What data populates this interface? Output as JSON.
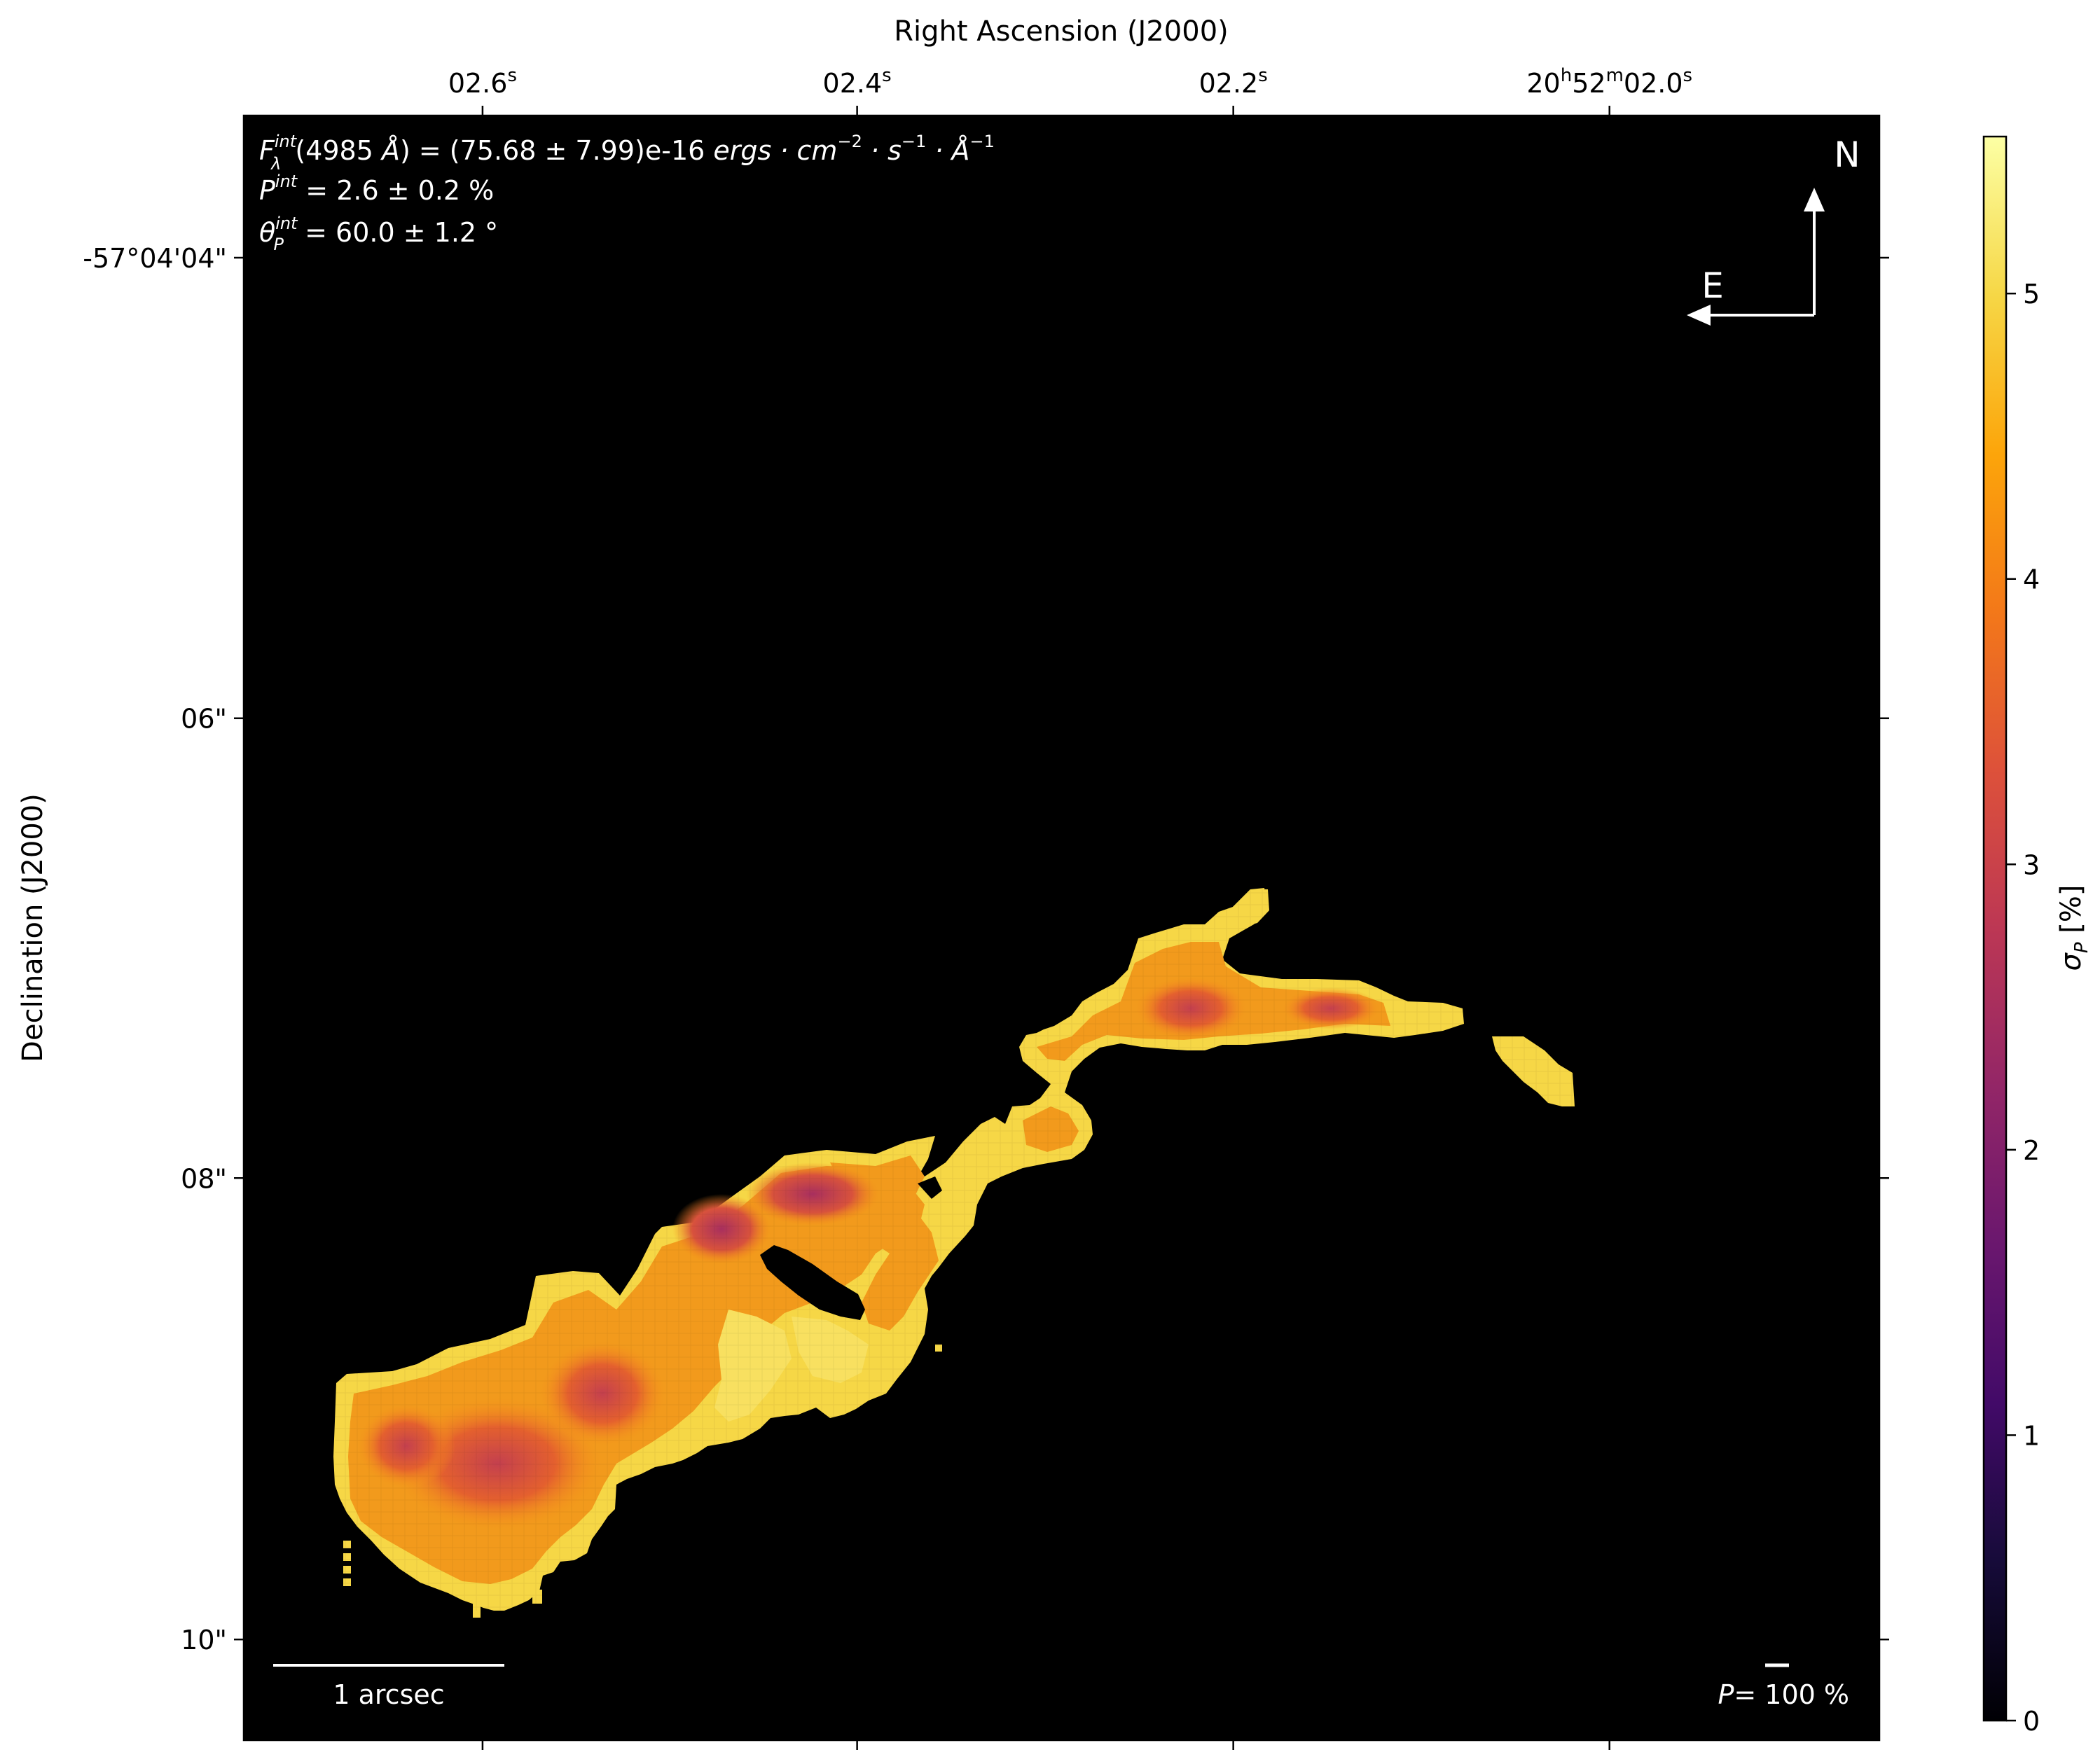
{
  "chart_data": {
    "type": "heatmap",
    "xlabel": "Right Ascension (J2000)",
    "ylabel": "Declination (J2000)",
    "x_ticks": [
      {
        "main": "02.6",
        "sup": "s",
        "pos": 0.146
      },
      {
        "main": "02.4",
        "sup": "s",
        "pos": 0.375
      },
      {
        "main": "02.2",
        "sup": "s",
        "pos": 0.605
      },
      {
        "main": "20",
        "sup": "h",
        "main2": "52",
        "sup2": "m",
        "main3": "02.0",
        "sup3": "s",
        "pos": 0.835
      }
    ],
    "y_ticks": [
      {
        "label": "-57°04'04\"",
        "pos": 0.0875
      },
      {
        "label": "06\"",
        "pos": 0.371
      },
      {
        "label": "08\"",
        "pos": 0.654
      },
      {
        "label": "10\"",
        "pos": 0.938
      }
    ],
    "colorbar": {
      "label": "σ_P [%]",
      "label_main": "σ",
      "label_sub": "P",
      "label_tail": " [%]",
      "min": 0,
      "max": 5.55,
      "ticks": [
        0,
        1,
        2,
        3,
        4,
        5
      ],
      "colormap": "inferno"
    },
    "annotations": {
      "line1_a": "F",
      "line1_sup": "int",
      "line1_sub": "λ",
      "line1_b": "(4985 ",
      "line1_italic_A": "Å",
      "line1_c": ") = (75.68 ± 7.99)e-16 ",
      "line1_units": "ergs · cm",
      "line1_u_sup1": "−2",
      "line1_units2": " · s",
      "line1_u_sup2": "−1",
      "line1_units3": " · Å",
      "line1_u_sup3": "−1",
      "line2_a": "P",
      "line2_sup": "int",
      "line2_b": " = 2.6 ± 0.2 %",
      "line3_a": "θ",
      "line3_sup": "int",
      "line3_sub": "P",
      "line3_b": " = 60.0 ± 1.2 °",
      "compass_north": "N",
      "compass_east": "E",
      "scalebar_label": "1 arcsec",
      "pol_scale_a": "P",
      "pol_scale_b": "= 100 %"
    },
    "background": "#000000"
  }
}
